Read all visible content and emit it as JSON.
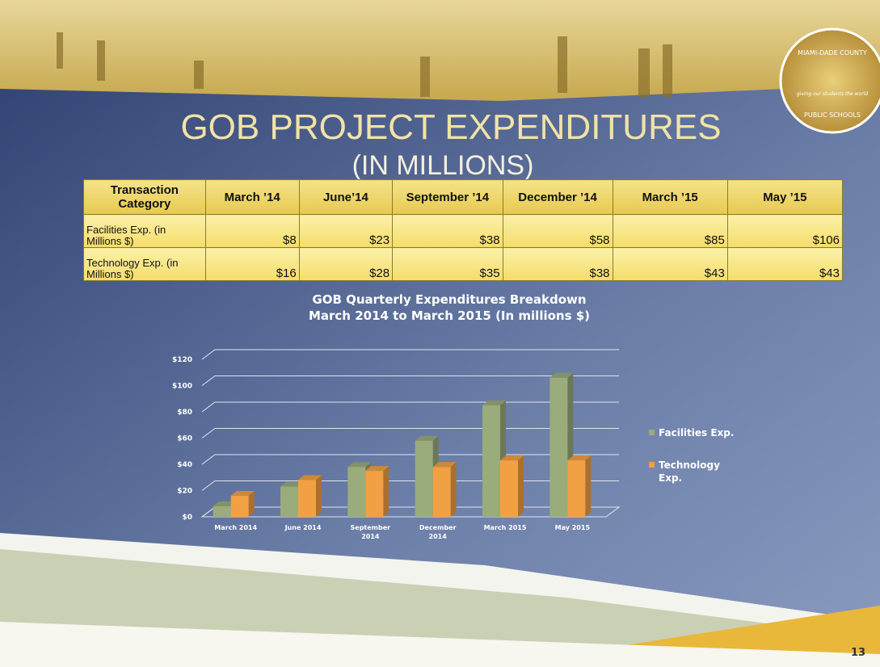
{
  "slide": {
    "title": "GOB PROJECT EXPENDITURES",
    "subtitle": "(IN MILLIONS)",
    "page_number": "13",
    "logo": {
      "top": "MIAMI-DADE COUNTY",
      "middle": "giving our students the world",
      "bottom": "PUBLIC SCHOOLS"
    }
  },
  "table": {
    "header": [
      "Transaction Category",
      "March ’14",
      "June’14",
      "September ’14",
      "December ’14",
      "March ’15",
      "May ’15"
    ],
    "rows": [
      [
        "Facilities Exp. (in Millions $)",
        "$8",
        "$23",
        "$38",
        "$58",
        "$85",
        "$106"
      ],
      [
        "Technology Exp. (in Millions $)",
        "$16",
        "$28",
        "$35",
        "$38",
        "$43",
        "$43"
      ]
    ]
  },
  "chart_data": {
    "type": "bar3d",
    "title": "GOB Quarterly Expenditures Breakdown",
    "subtitle": "March 2014 to March 2015 (In millions $)",
    "categories": [
      "March 2014",
      "June 2014",
      "September 2014",
      "December 2014",
      "March 2015",
      "May 2015"
    ],
    "series": [
      {
        "name": "Facilities Exp.",
        "color": "#9aab7c",
        "values": [
          8,
          23,
          38,
          58,
          85,
          106
        ]
      },
      {
        "name": "Technology Exp.",
        "color": "#f2a044",
        "values": [
          16,
          28,
          35,
          38,
          43,
          43
        ]
      }
    ],
    "ylim": [
      0,
      120
    ],
    "yticks": [
      {
        "value": 0,
        "label": "$0"
      },
      {
        "value": 20,
        "label": "$20"
      },
      {
        "value": 40,
        "label": "$40"
      },
      {
        "value": 60,
        "label": "$60"
      },
      {
        "value": 80,
        "label": "$80"
      },
      {
        "value": 100,
        "label": "$100"
      },
      {
        "value": 120,
        "label": "$120"
      }
    ],
    "grid": true,
    "legend": "right"
  }
}
